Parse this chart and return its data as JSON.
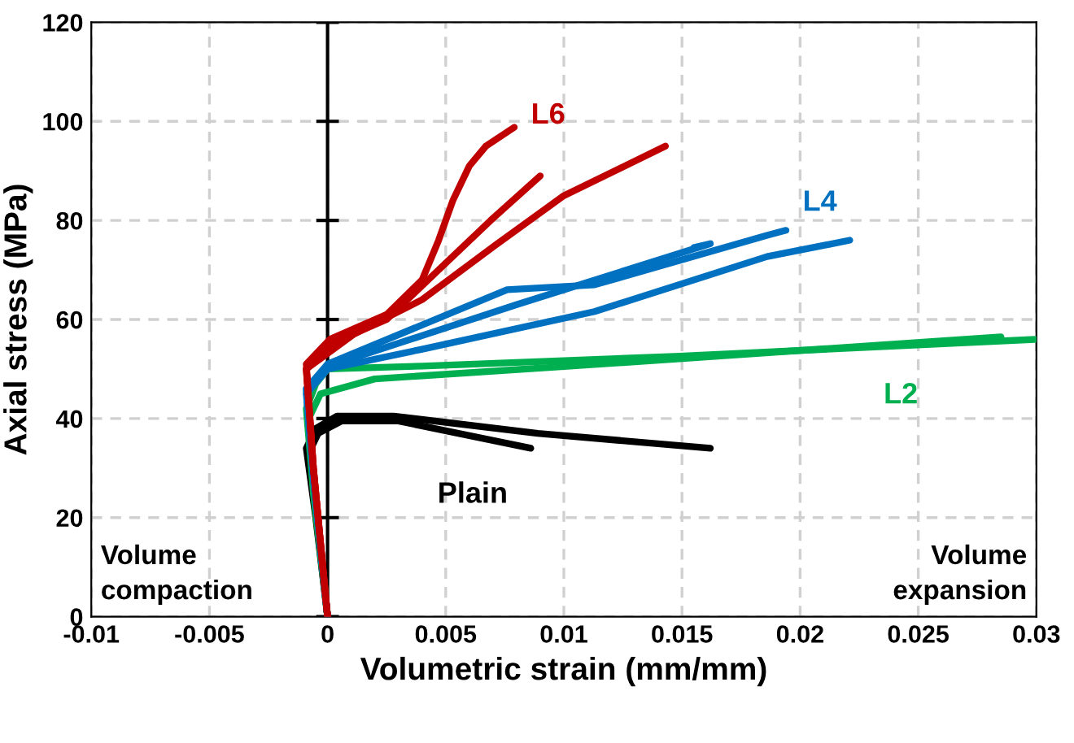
{
  "chart_data": {
    "type": "line",
    "xlabel": "Volumetric strain (mm/mm)",
    "ylabel": "Axial stress (MPa)",
    "xlim": [
      -0.01,
      0.03
    ],
    "xticks": [
      -0.01,
      -0.005,
      0,
      0.005,
      0.01,
      0.015,
      0.02,
      0.025,
      0.03
    ],
    "ylim": [
      0,
      120
    ],
    "yticks": [
      0,
      20,
      40,
      60,
      80,
      100,
      120
    ],
    "grid": true,
    "legend": false,
    "marker": "none",
    "line_style": "solid",
    "ref_lines": [
      {
        "axis": "x",
        "value": 0,
        "color": "#000000",
        "line_style": "solid"
      }
    ],
    "annotations": [
      "Volume\ncompaction",
      "Volume\nexpansion"
    ],
    "series": [
      {
        "name": "Plain",
        "color": "#000000",
        "x": [
          0,
          -0.0005,
          -0.0009,
          -0.0005,
          0.0004,
          0.0028,
          0.0089,
          0.0162
        ],
        "values": [
          0,
          20,
          34,
          38,
          40.5,
          40.5,
          37,
          34
        ]
      },
      {
        "color": "#000000",
        "x": [
          0,
          -0.0004,
          -0.0008,
          -0.0004,
          0.0006,
          0.003,
          0.0086
        ],
        "values": [
          0,
          18,
          33,
          37,
          39.5,
          39.5,
          34
        ]
      },
      {
        "name": "L2",
        "color": "#00b050",
        "x": [
          0,
          -0.0006,
          -0.0009,
          -0.0005,
          0,
          0.004,
          0.0149,
          0.03
        ],
        "values": [
          0,
          25,
          42,
          47,
          50,
          50.6,
          52.6,
          56
        ]
      },
      {
        "color": "#00b050",
        "x": [
          0,
          -0.0005,
          -0.0008,
          -0.0003,
          0.002,
          0.01,
          0.0285
        ],
        "values": [
          0,
          24,
          40,
          45,
          48,
          50.5,
          56.5
        ]
      },
      {
        "name": "L4",
        "color": "#0070c0",
        "x": [
          0,
          -0.0006,
          -0.0009,
          0,
          0.0076,
          0.0113,
          0.0186,
          0.0194
        ],
        "values": [
          0,
          28,
          46,
          51,
          66,
          67,
          77,
          78
        ]
      },
      {
        "color": "#0070c0",
        "x": [
          0,
          -0.0006,
          -0.0009,
          0,
          0.004,
          0.0113,
          0.0186,
          0.0221
        ],
        "values": [
          0,
          28,
          45,
          50,
          54,
          61.6,
          72.7,
          76
        ]
      },
      {
        "color": "#0070c0",
        "x": [
          0,
          -0.0006,
          -0.0009,
          0,
          0.008,
          0.0162,
          0.0155
        ],
        "values": [
          0,
          28,
          46,
          50.5,
          63,
          75.3,
          74.5
        ]
      },
      {
        "name": "L6",
        "color": "#c00000",
        "x": [
          0,
          -0.0006,
          -0.0009,
          0.0001,
          0.0025,
          0.004,
          0.0047,
          0.0053,
          0.006,
          0.0067,
          0.0079
        ],
        "values": [
          0,
          30,
          51,
          56,
          61,
          68,
          76,
          84,
          91,
          95,
          98.8
        ]
      },
      {
        "color": "#c00000",
        "x": [
          0,
          -0.0006,
          -0.0009,
          0.0001,
          0.0025,
          0.0047,
          0.0069,
          0.009
        ],
        "values": [
          0,
          30,
          50,
          55,
          60,
          70,
          80,
          89
        ]
      },
      {
        "color": "#c00000",
        "x": [
          0,
          -0.0006,
          -0.0009,
          0.0011,
          0.004,
          0.0071,
          0.01,
          0.0143
        ],
        "values": [
          0,
          30,
          50,
          57,
          64,
          75,
          85,
          95
        ]
      }
    ]
  }
}
